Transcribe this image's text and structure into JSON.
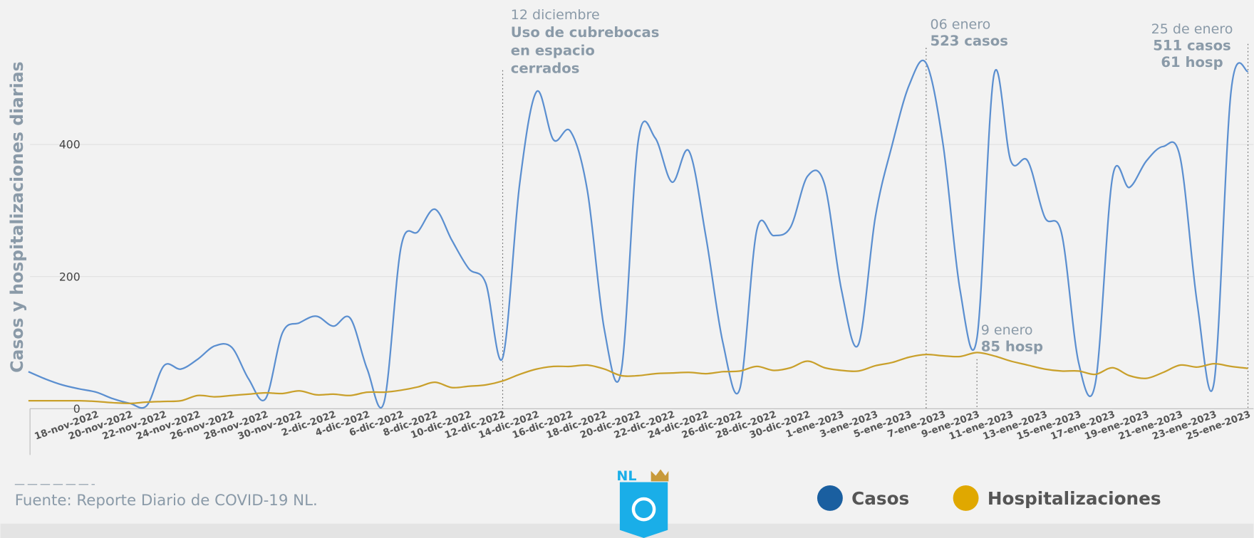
{
  "chart_data": {
    "type": "line",
    "y_label": "Casos y hospitalizaciones diarias",
    "categories": [
      null,
      null,
      null,
      null,
      "18-nov-2022",
      null,
      "20-nov-2022",
      null,
      "22-nov-2022",
      null,
      "24-nov-2022",
      null,
      "26-nov-2022",
      null,
      "28-nov-2022",
      null,
      "30-nov-2022",
      null,
      "2-dic-2022",
      null,
      "4-dic-2022",
      null,
      "6-dic-2022",
      null,
      "8-dic-2022",
      null,
      "10-dic-2022",
      null,
      "12-dic-2022",
      null,
      "14-dic-2022",
      null,
      "16-dic-2022",
      null,
      "18-dic-2022",
      null,
      "20-dic-2022",
      null,
      "22-dic-2022",
      null,
      "24-dic-2022",
      null,
      "26-dic-2022",
      null,
      "28-dic-2022",
      null,
      "30-dic-2022",
      null,
      "1-ene-2023",
      null,
      "3-ene-2023",
      null,
      "5-ene-2023",
      null,
      "7-ene-2023",
      null,
      "9-ene-2023",
      null,
      "11-ene-2023",
      null,
      "13-ene-2023",
      null,
      "15-ene-2023",
      null,
      "17-ene-2023",
      null,
      "19-ene-2023",
      null,
      "21-ene-2023",
      null,
      "23-ene-2023",
      null,
      "25-ene-2023"
    ],
    "series": [
      {
        "name": "Casos",
        "color": "#5b8fd0",
        "legend_color": "#1a5fa0",
        "values": [
          56,
          45,
          36,
          30,
          25,
          15,
          8,
          5,
          65,
          60,
          75,
          95,
          93,
          45,
          15,
          115,
          130,
          140,
          125,
          137,
          60,
          10,
          245,
          268,
          302,
          255,
          212,
          190,
          77,
          340,
          480,
          407,
          420,
          330,
          120,
          57,
          405,
          410,
          343,
          390,
          260,
          100,
          30,
          270,
          262,
          275,
          352,
          340,
          180,
          97,
          290,
          400,
          490,
          523,
          400,
          180,
          107,
          505,
          375,
          375,
          290,
          265,
          70,
          40,
          350,
          335,
          375,
          397,
          380,
          160,
          40,
          480,
          511
        ]
      },
      {
        "name": "Hospitalizaciones",
        "color": "#c9a02b",
        "legend_color": "#e0a800",
        "values": [
          12,
          12,
          12,
          12,
          11,
          9,
          8,
          10,
          11,
          12,
          20,
          18,
          20,
          22,
          24,
          23,
          27,
          21,
          22,
          20,
          25,
          25,
          28,
          33,
          40,
          32,
          34,
          36,
          42,
          52,
          60,
          64,
          64,
          66,
          60,
          50,
          50,
          53,
          54,
          55,
          53,
          56,
          57,
          64,
          58,
          62,
          72,
          62,
          58,
          57,
          65,
          70,
          78,
          82,
          80,
          79,
          85,
          80,
          72,
          66,
          60,
          57,
          57,
          52,
          62,
          50,
          46,
          55,
          66,
          63,
          68,
          64,
          61
        ]
      }
    ],
    "ylim": [
      0,
      550
    ],
    "yticks": [
      0,
      200,
      400
    ],
    "grid": true,
    "annotations": [
      {
        "lines": [
          "12 diciembre",
          "Uso de cubrebocas",
          "en espacio",
          "cerrados"
        ]
      },
      {
        "lines": [
          "06 enero",
          "523 casos"
        ]
      },
      {
        "lines": [
          "9 enero",
          "85 hosp"
        ]
      },
      {
        "lines": [
          "25 de enero",
          "511 casos",
          "61 hosp"
        ]
      }
    ],
    "source": "Fuente: Reporte Diario de COVID-19 NL.",
    "logo": "NL"
  }
}
